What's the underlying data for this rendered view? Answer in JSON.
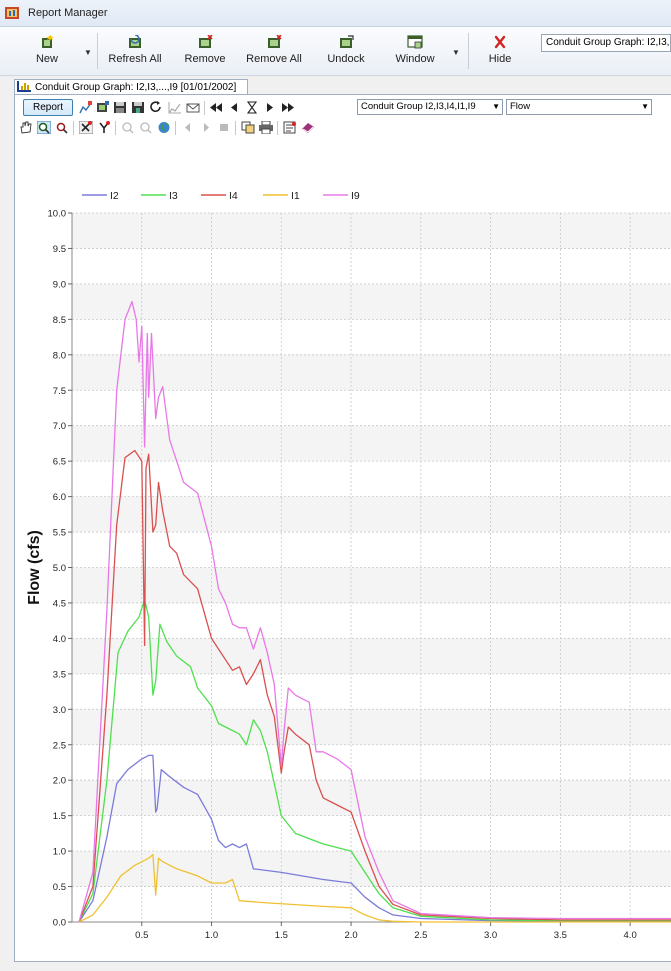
{
  "window": {
    "title": "Report Manager"
  },
  "toolbar": {
    "new_label": "New",
    "refresh_all_label": "Refresh All",
    "remove_label": "Remove",
    "remove_all_label": "Remove All",
    "undock_label": "Undock",
    "window_label": "Window",
    "hide_label": "Hide",
    "report_combo_value": "Conduit Group Graph: I2,I3,"
  },
  "tab": {
    "label": "Conduit Group Graph: I2,I3,...,I9 [01/01/2002]"
  },
  "report_toolbar": {
    "report_button_label": "Report",
    "group_combo_value": "Conduit Group I2,I3,I4,I1,I9",
    "variable_combo_value": "Flow"
  },
  "icons": {
    "app": "report-manager-icon",
    "new": "new-report-icon",
    "refresh_all": "refresh-all-icon",
    "remove": "remove-icon",
    "remove_all": "remove-all-icon",
    "undock": "undock-icon",
    "window": "window-icon",
    "hide": "hide-icon"
  },
  "colors": {
    "I2": "#7b7bdb",
    "I3": "#4fe04f",
    "I4": "#d9504f",
    "I1": "#f0c030",
    "I9": "#e878e8",
    "hide_x": "#d22222"
  },
  "chart_data": {
    "type": "line",
    "title": "",
    "xlabel": "",
    "ylabel": "Flow (cfs)",
    "xlim": [
      0.0,
      4.3
    ],
    "ylim": [
      0.0,
      10.0
    ],
    "x_ticks": [
      "0.5",
      "1.0",
      "1.5",
      "2.0",
      "2.5",
      "3.0",
      "3.5",
      "4.0"
    ],
    "y_ticks": [
      "0.0",
      "0.5",
      "1.0",
      "1.5",
      "2.0",
      "2.5",
      "3.0",
      "3.5",
      "4.0",
      "4.5",
      "5.0",
      "5.5",
      "6.0",
      "6.5",
      "7.0",
      "7.5",
      "8.0",
      "8.5",
      "9.0",
      "9.5",
      "10.0"
    ],
    "grid": true,
    "legend_position": "top-left",
    "series": [
      {
        "name": "I2",
        "color": "#7b7bdb",
        "x": [
          0.05,
          0.15,
          0.25,
          0.32,
          0.4,
          0.5,
          0.55,
          0.58,
          0.6,
          0.61,
          0.64,
          0.7,
          0.8,
          0.9,
          1.0,
          1.05,
          1.1,
          1.15,
          1.2,
          1.25,
          1.3,
          1.5,
          1.8,
          2.0,
          2.1,
          2.2,
          2.3,
          2.5,
          3.0,
          3.5,
          4.3
        ],
        "y": [
          0.0,
          0.3,
          1.2,
          1.95,
          2.15,
          2.3,
          2.35,
          2.35,
          1.55,
          1.6,
          2.15,
          2.05,
          1.9,
          1.8,
          1.45,
          1.15,
          1.05,
          1.1,
          1.05,
          1.1,
          0.75,
          0.7,
          0.6,
          0.55,
          0.35,
          0.2,
          0.1,
          0.05,
          0.02,
          0.01,
          0.01
        ]
      },
      {
        "name": "I3",
        "color": "#4fe04f",
        "x": [
          0.05,
          0.15,
          0.25,
          0.33,
          0.4,
          0.48,
          0.52,
          0.55,
          0.58,
          0.6,
          0.63,
          0.68,
          0.75,
          0.85,
          0.9,
          1.0,
          1.05,
          1.1,
          1.2,
          1.25,
          1.3,
          1.35,
          1.4,
          1.5,
          1.6,
          1.8,
          2.0,
          2.1,
          2.2,
          2.3,
          2.5,
          3.0,
          3.5,
          4.3
        ],
        "y": [
          0.0,
          0.4,
          2.0,
          3.8,
          4.1,
          4.3,
          4.55,
          4.3,
          3.2,
          3.4,
          4.2,
          3.95,
          3.75,
          3.6,
          3.3,
          3.05,
          2.8,
          2.75,
          2.65,
          2.5,
          2.85,
          2.7,
          2.4,
          1.5,
          1.25,
          1.1,
          1.0,
          0.7,
          0.4,
          0.2,
          0.08,
          0.03,
          0.02,
          0.02
        ]
      },
      {
        "name": "I4",
        "color": "#d9504f",
        "x": [
          0.05,
          0.15,
          0.25,
          0.32,
          0.38,
          0.45,
          0.5,
          0.52,
          0.53,
          0.55,
          0.58,
          0.6,
          0.62,
          0.65,
          0.7,
          0.75,
          0.8,
          0.9,
          1.0,
          1.1,
          1.15,
          1.2,
          1.25,
          1.3,
          1.35,
          1.4,
          1.45,
          1.5,
          1.52,
          1.55,
          1.6,
          1.7,
          1.75,
          1.8,
          1.9,
          2.0,
          2.1,
          2.2,
          2.3,
          2.5,
          3.0,
          3.5,
          4.3
        ],
        "y": [
          0.0,
          0.5,
          3.2,
          5.6,
          6.55,
          6.65,
          6.5,
          3.9,
          6.4,
          6.6,
          5.5,
          5.6,
          6.2,
          5.8,
          5.3,
          5.2,
          4.9,
          4.7,
          4.0,
          3.7,
          3.55,
          3.6,
          3.35,
          3.5,
          3.7,
          3.2,
          2.9,
          2.1,
          2.4,
          2.75,
          2.65,
          2.5,
          2.0,
          1.75,
          1.65,
          1.55,
          1.0,
          0.5,
          0.25,
          0.1,
          0.05,
          0.03,
          0.03
        ]
      },
      {
        "name": "I1",
        "color": "#f0c030",
        "x": [
          0.05,
          0.15,
          0.25,
          0.35,
          0.45,
          0.55,
          0.58,
          0.6,
          0.62,
          0.65,
          0.75,
          0.9,
          1.0,
          1.1,
          1.15,
          1.2,
          1.4,
          1.8,
          2.0,
          2.1,
          2.2,
          2.3,
          2.5,
          3.0,
          4.3
        ],
        "y": [
          0.0,
          0.1,
          0.35,
          0.65,
          0.8,
          0.9,
          0.95,
          0.38,
          0.9,
          0.85,
          0.75,
          0.65,
          0.55,
          0.55,
          0.6,
          0.3,
          0.27,
          0.22,
          0.2,
          0.1,
          0.03,
          0.01,
          0.0,
          0.0,
          0.0
        ]
      },
      {
        "name": "I9",
        "color": "#e878e8",
        "x": [
          0.05,
          0.15,
          0.25,
          0.32,
          0.38,
          0.43,
          0.46,
          0.48,
          0.5,
          0.52,
          0.54,
          0.55,
          0.57,
          0.6,
          0.62,
          0.65,
          0.7,
          0.75,
          0.8,
          0.9,
          1.0,
          1.05,
          1.1,
          1.15,
          1.2,
          1.25,
          1.3,
          1.35,
          1.4,
          1.45,
          1.5,
          1.52,
          1.55,
          1.6,
          1.65,
          1.7,
          1.75,
          1.8,
          1.9,
          2.0,
          2.1,
          2.2,
          2.3,
          2.5,
          3.0,
          3.5,
          4.3
        ],
        "y": [
          0.0,
          0.7,
          4.4,
          7.5,
          8.5,
          8.75,
          8.5,
          7.9,
          8.4,
          6.7,
          8.3,
          7.4,
          8.3,
          7.1,
          7.4,
          7.55,
          6.8,
          6.5,
          6.2,
          6.05,
          5.3,
          4.7,
          4.5,
          4.2,
          4.15,
          4.15,
          3.85,
          4.15,
          3.8,
          3.35,
          2.2,
          2.7,
          3.3,
          3.2,
          3.15,
          3.1,
          2.4,
          2.4,
          2.3,
          2.15,
          1.2,
          0.7,
          0.3,
          0.12,
          0.06,
          0.05,
          0.05
        ]
      }
    ]
  }
}
